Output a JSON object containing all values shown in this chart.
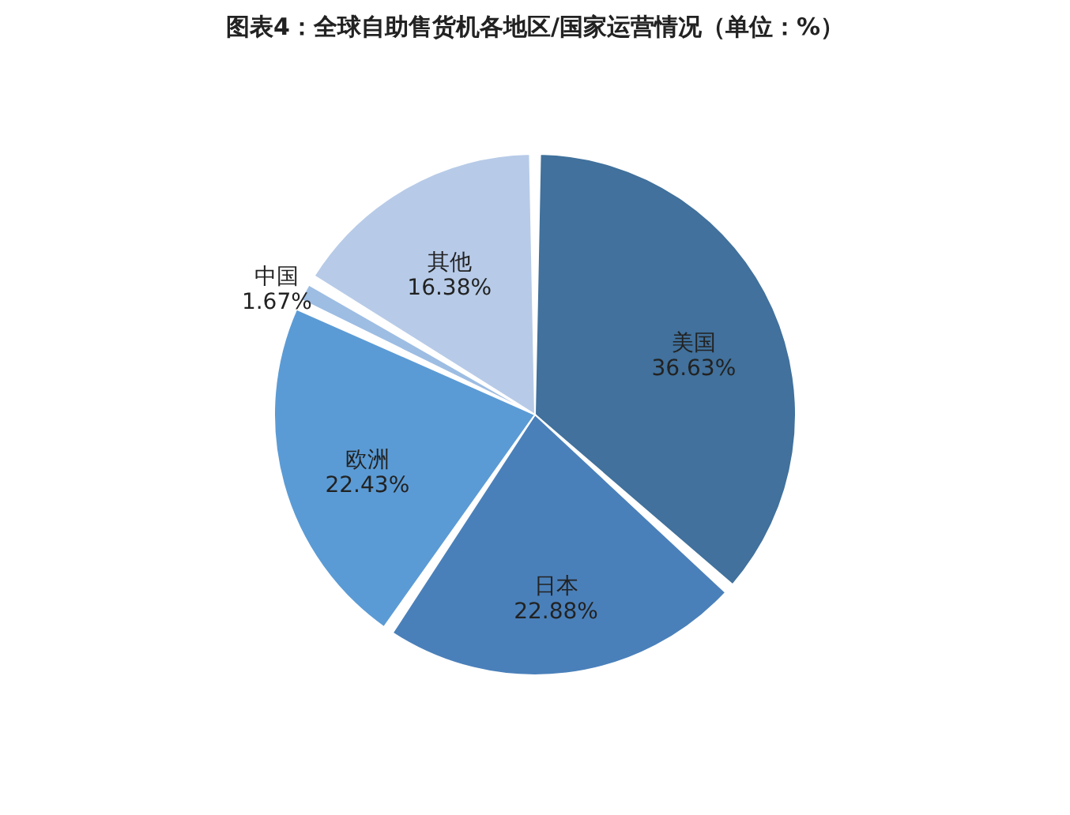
{
  "chart_data": {
    "type": "pie",
    "title": "图表4：全球自助售货机各地区/国家运营情况（单位：%）",
    "categories": [
      "美国",
      "日本",
      "欧洲",
      "中国",
      "其他"
    ],
    "values": [
      36.63,
      22.88,
      22.43,
      1.67,
      16.38
    ],
    "value_labels": [
      "36.63%",
      "22.88%",
      "22.43%",
      "1.67%",
      "16.38%"
    ],
    "colors": [
      "#41719c",
      "#4a80ba",
      "#5b9bd5",
      "#9dbde3",
      "#b7cbe8"
    ],
    "legend": false
  }
}
